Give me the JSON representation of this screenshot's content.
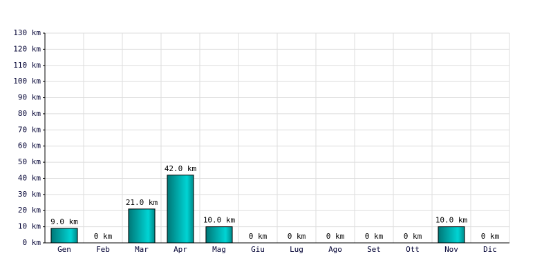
{
  "chart_data": {
    "type": "bar",
    "categories": [
      "Gen",
      "Feb",
      "Mar",
      "Apr",
      "Mag",
      "Giu",
      "Lug",
      "Ago",
      "Set",
      "Ott",
      "Nov",
      "Dic"
    ],
    "values": [
      9,
      0,
      21,
      42,
      10,
      0,
      0,
      0,
      0,
      0,
      10,
      0
    ],
    "value_labels": [
      "9.0 km",
      "0 km",
      "21.0 km",
      "42.0 km",
      "10.0 km",
      "0 km",
      "0 km",
      "0 km",
      "0 km",
      "0 km",
      "10.0 km",
      "0 km"
    ],
    "color": "#00d4d4",
    "ylim": [
      0,
      130
    ],
    "yticks": [
      {
        "value": 0,
        "label": "0 km"
      },
      {
        "value": 10,
        "label": "10 km"
      },
      {
        "value": 20,
        "label": "20 km"
      },
      {
        "value": 30,
        "label": "30 km"
      },
      {
        "value": 40,
        "label": "40 km"
      },
      {
        "value": 50,
        "label": "50 km"
      },
      {
        "value": 60,
        "label": "60 km"
      },
      {
        "value": 70,
        "label": "70 km"
      },
      {
        "value": 80,
        "label": "80 km"
      },
      {
        "value": 90,
        "label": "90 km"
      },
      {
        "value": 100,
        "label": "100 km"
      },
      {
        "value": 110,
        "label": "110 km"
      },
      {
        "value": 120,
        "label": "120 km"
      },
      {
        "value": 130,
        "label": "130 km"
      }
    ],
    "grid": true
  }
}
